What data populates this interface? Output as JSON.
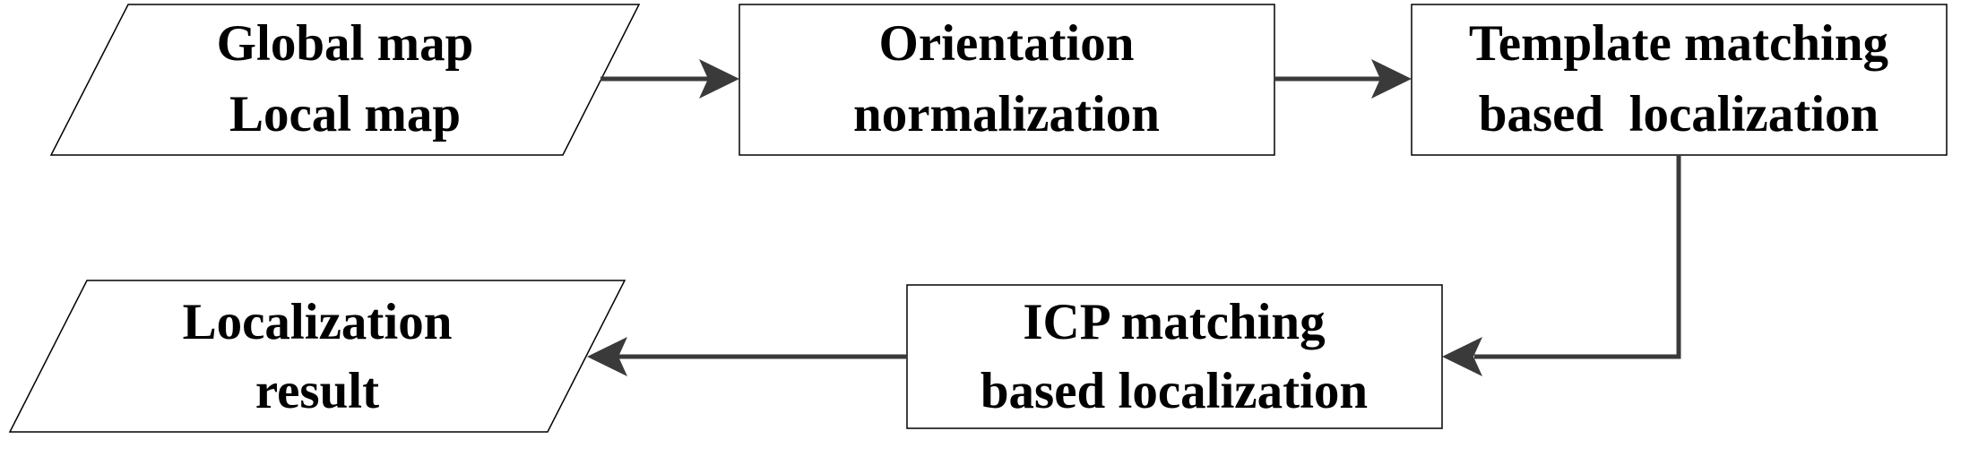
{
  "nodes": {
    "input": {
      "lines": [
        "Global map",
        "Local map"
      ]
    },
    "orientation": {
      "lines": [
        "Orientation",
        "normalization"
      ]
    },
    "template": {
      "lines": [
        "Template matching",
        "based  localization"
      ]
    },
    "icp": {
      "lines": [
        "ICP matching",
        "based localization"
      ]
    },
    "output": {
      "lines": [
        "Localization",
        "result"
      ]
    }
  },
  "colors": {
    "arrow": "#3a3a3a",
    "border": "#000000",
    "text": "#000000"
  }
}
